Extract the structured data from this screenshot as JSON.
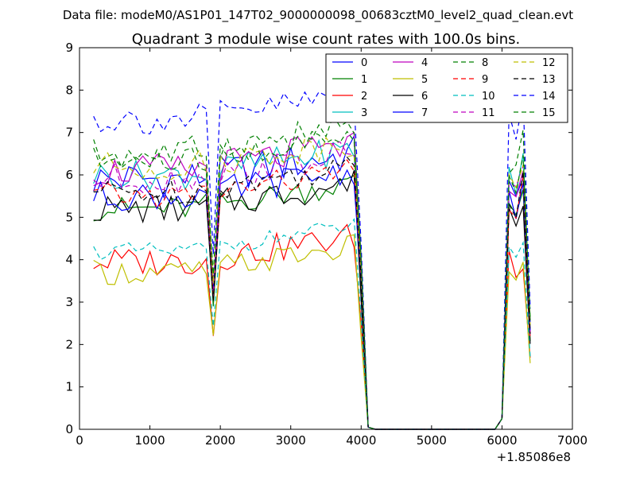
{
  "suptitle": "Data file: modeM0/AS1P01_147T02_9000000098_00683cztM0_level2_quad_clean.evt",
  "chart_data": {
    "type": "line",
    "title": "Quadrant 3 module wise count rates with 100.0s bins.",
    "xlabel": "",
    "ylabel": "",
    "x_offset_label": "+1.85086e8",
    "xlim": [
      0,
      7000
    ],
    "ylim": [
      0,
      9
    ],
    "x_ticks": [
      "0",
      "1000",
      "2000",
      "3000",
      "4000",
      "5000",
      "6000",
      "7000"
    ],
    "y_ticks": [
      "0",
      "1",
      "2",
      "3",
      "4",
      "5",
      "6",
      "7",
      "8",
      "9"
    ],
    "grid": false,
    "legend_position": "top-right",
    "legend_columns": 4,
    "x": [
      200,
      300,
      400,
      500,
      600,
      700,
      800,
      900,
      1000,
      1100,
      1200,
      1300,
      1400,
      1500,
      1600,
      1700,
      1800,
      1900,
      2000,
      2100,
      2200,
      2300,
      2400,
      2500,
      2600,
      2700,
      2800,
      2900,
      3000,
      3100,
      3200,
      3300,
      3400,
      3500,
      3600,
      3700,
      3800,
      3900,
      4000,
      4100,
      4200,
      4300,
      4400,
      4500,
      4600,
      4700,
      4800,
      4900,
      5000,
      5100,
      5200,
      5300,
      5400,
      5500,
      5600,
      5700,
      5800,
      5900,
      6000,
      6100,
      6200,
      6300,
      6400
    ],
    "series": [
      {
        "name": "0",
        "color": "#0000ff",
        "dash": "solid",
        "base": 5.9,
        "amp": 0.45
      },
      {
        "name": "1",
        "color": "#008000",
        "dash": "solid",
        "base": 5.2,
        "amp": 0.3
      },
      {
        "name": "2",
        "color": "#ff0000",
        "dash": "solid",
        "base": 3.95,
        "amp": 0.35
      },
      {
        "name": "3",
        "color": "#00bfbf",
        "dash": "solid",
        "base": 6.0,
        "amp": 0.35
      },
      {
        "name": "4",
        "color": "#bf00bf",
        "dash": "solid",
        "base": 6.1,
        "amp": 0.4
      },
      {
        "name": "5",
        "color": "#bfbf00",
        "dash": "solid",
        "base": 3.7,
        "amp": 0.3
      },
      {
        "name": "6",
        "color": "#000000",
        "dash": "solid",
        "base": 5.2,
        "amp": 0.35
      },
      {
        "name": "7",
        "color": "#0000ff",
        "dash": "solid",
        "base": 5.5,
        "amp": 0.35
      },
      {
        "name": "8",
        "color": "#008000",
        "dash": "dashed",
        "base": 6.5,
        "amp": 0.4
      },
      {
        "name": "9",
        "color": "#ff0000",
        "dash": "dashed",
        "base": 5.5,
        "amp": 0.3
      },
      {
        "name": "10",
        "color": "#00bfbf",
        "dash": "dashed",
        "base": 4.2,
        "amp": 0.2
      },
      {
        "name": "11",
        "color": "#bf00bf",
        "dash": "dashed",
        "base": 5.9,
        "amp": 0.35
      },
      {
        "name": "12",
        "color": "#bfbf00",
        "dash": "dashed",
        "base": 6.2,
        "amp": 0.35
      },
      {
        "name": "13",
        "color": "#000000",
        "dash": "dashed",
        "base": 5.6,
        "amp": 0.3
      },
      {
        "name": "14",
        "color": "#0000ff",
        "dash": "dashed",
        "base": 7.3,
        "amp": 0.35
      },
      {
        "name": "15",
        "color": "#008000",
        "dash": "dashed",
        "base": 6.3,
        "amp": 0.35
      }
    ]
  }
}
